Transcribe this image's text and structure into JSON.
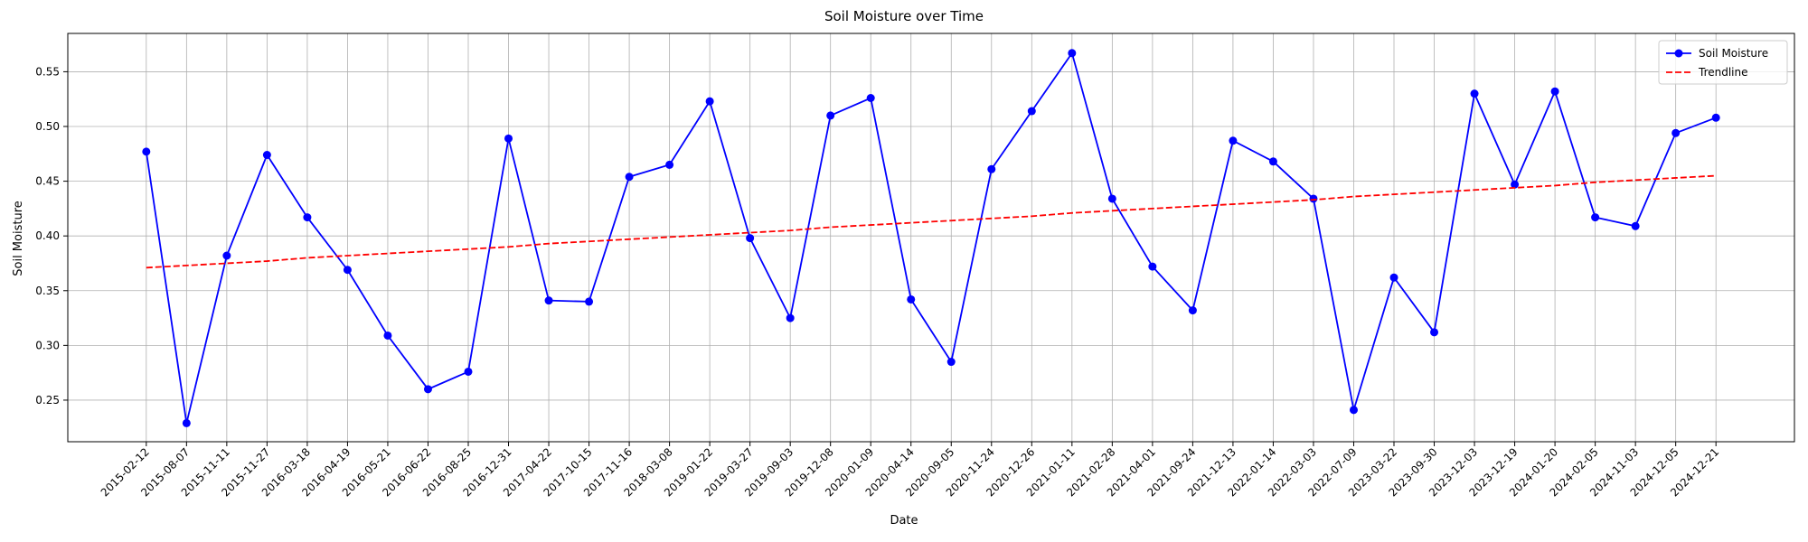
{
  "chart_data": {
    "type": "line",
    "title": "Soil Moisture over Time",
    "x_label": "Date",
    "y_label": "Soil Moisture",
    "categories": [
      "2015-02-12",
      "2015-08-07",
      "2015-11-11",
      "2015-11-27",
      "2016-03-18",
      "2016-04-19",
      "2016-05-21",
      "2016-06-22",
      "2016-08-25",
      "2016-12-31",
      "2017-04-22",
      "2017-10-15",
      "2017-11-16",
      "2018-03-08",
      "2019-01-22",
      "2019-03-27",
      "2019-09-03",
      "2019-12-08",
      "2020-01-09",
      "2020-04-14",
      "2020-09-05",
      "2020-11-24",
      "2020-12-26",
      "2021-01-11",
      "2021-02-28",
      "2021-04-01",
      "2021-09-24",
      "2021-12-13",
      "2022-01-14",
      "2022-03-03",
      "2022-07-09",
      "2023-03-22",
      "2023-09-30",
      "2023-12-03",
      "2023-12-19",
      "2024-01-20",
      "2024-02-05",
      "2024-11-03",
      "2024-12-05",
      "2024-12-21"
    ],
    "series": [
      {
        "name": "Soil Moisture",
        "color": "#0000ff",
        "linestyle": "solid",
        "marker": "o",
        "values": [
          0.477,
          0.229,
          0.382,
          0.474,
          0.417,
          0.369,
          0.309,
          0.26,
          0.276,
          0.489,
          0.341,
          0.34,
          0.454,
          0.465,
          0.523,
          0.398,
          0.325,
          0.51,
          0.526,
          0.342,
          0.285,
          0.461,
          0.514,
          0.567,
          0.434,
          0.372,
          0.332,
          0.487,
          0.468,
          0.434,
          0.241,
          0.362,
          0.312,
          0.53,
          0.447,
          0.532,
          0.417,
          0.409,
          0.494,
          0.508
        ]
      },
      {
        "name": "Trendline",
        "color": "#ff0000",
        "linestyle": "dashed",
        "marker": null,
        "values": [
          0.371,
          0.373,
          0.375,
          0.377,
          0.38,
          0.382,
          0.384,
          0.386,
          0.388,
          0.39,
          0.393,
          0.395,
          0.397,
          0.399,
          0.401,
          0.403,
          0.405,
          0.408,
          0.41,
          0.412,
          0.414,
          0.416,
          0.418,
          0.421,
          0.423,
          0.425,
          0.427,
          0.429,
          0.431,
          0.433,
          0.436,
          0.438,
          0.44,
          0.442,
          0.444,
          0.446,
          0.449,
          0.451,
          0.453,
          0.455
        ]
      }
    ],
    "ylim": [
      0.212,
      0.585
    ],
    "yticks": [
      {
        "value": 0.25,
        "label": "0.25"
      },
      {
        "value": 0.3,
        "label": "0.30"
      },
      {
        "value": 0.35,
        "label": "0.35"
      },
      {
        "value": 0.4,
        "label": "0.40"
      },
      {
        "value": 0.45,
        "label": "0.45"
      },
      {
        "value": 0.5,
        "label": "0.50"
      },
      {
        "value": 0.55,
        "label": "0.55"
      }
    ],
    "grid": true,
    "legend": "upper right"
  }
}
